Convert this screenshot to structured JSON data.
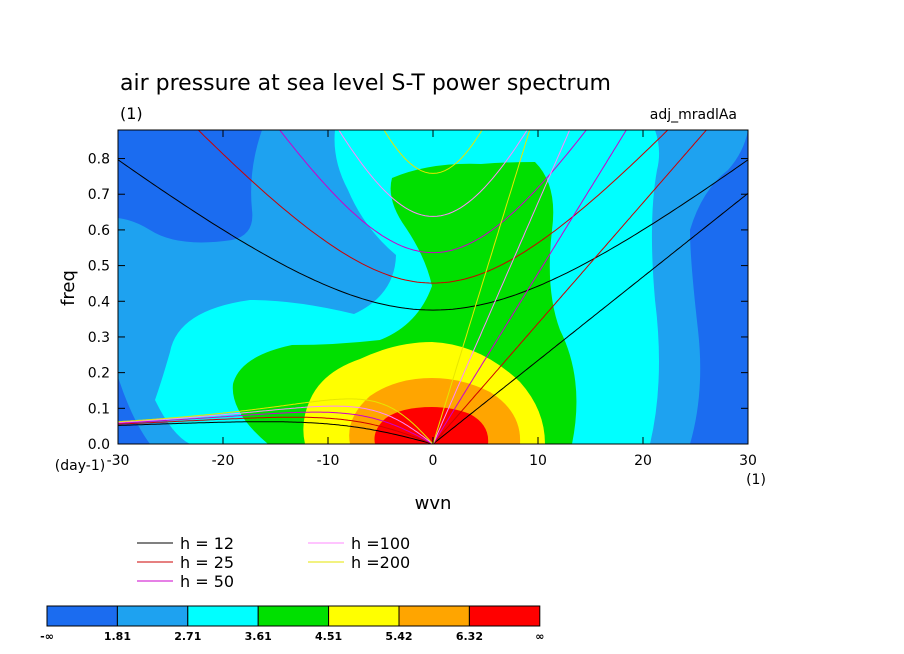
{
  "chart_data": {
    "type": "heatmap",
    "title": "air pressure at sea level S-T power spectrum",
    "subtitle_left": "(1)",
    "subtitle_right": "adj_mradlAa",
    "xlabel": "wvn",
    "ylabel": "freq",
    "x_unit": "(1)",
    "y_unit": "(day-1)",
    "xlim": [
      -30,
      30
    ],
    "ylim": [
      0,
      0.88
    ],
    "xticks": [
      -30,
      -20,
      -10,
      0,
      10,
      20,
      30
    ],
    "xtick_labels": [
      "-30",
      "-20",
      "-10",
      "0",
      "10",
      "20",
      "30"
    ],
    "yticks": [
      0,
      0.1,
      0.2,
      0.3,
      0.4,
      0.5,
      0.6,
      0.7,
      0.8
    ],
    "ytick_labels": [
      "0.0",
      "0.1",
      "0.2",
      "0.3",
      "0.4",
      "0.5",
      "0.6",
      "0.7",
      "0.8"
    ],
    "contour_levels": [
      1.81,
      2.71,
      3.61,
      4.51,
      5.42,
      6.32
    ],
    "colorbar_labels": [
      "-∞",
      "1.81",
      "2.71",
      "3.61",
      "4.51",
      "5.42",
      "6.32",
      "∞"
    ],
    "colorbar_colors": [
      "#1b6cf0",
      "#1ea2f0",
      "#00ffff",
      "#00e000",
      "#ffff00",
      "#ffa500",
      "#ff0000"
    ],
    "dispersion_curves": [
      {
        "name": "h = 12",
        "color": "#000000"
      },
      {
        "name": "h = 25",
        "color": "#cc0000"
      },
      {
        "name": "h = 50",
        "color": "#cc00cc"
      },
      {
        "name": "h =100",
        "color": "#ff88ff"
      },
      {
        "name": "h =200",
        "color": "#e6e600"
      }
    ]
  }
}
